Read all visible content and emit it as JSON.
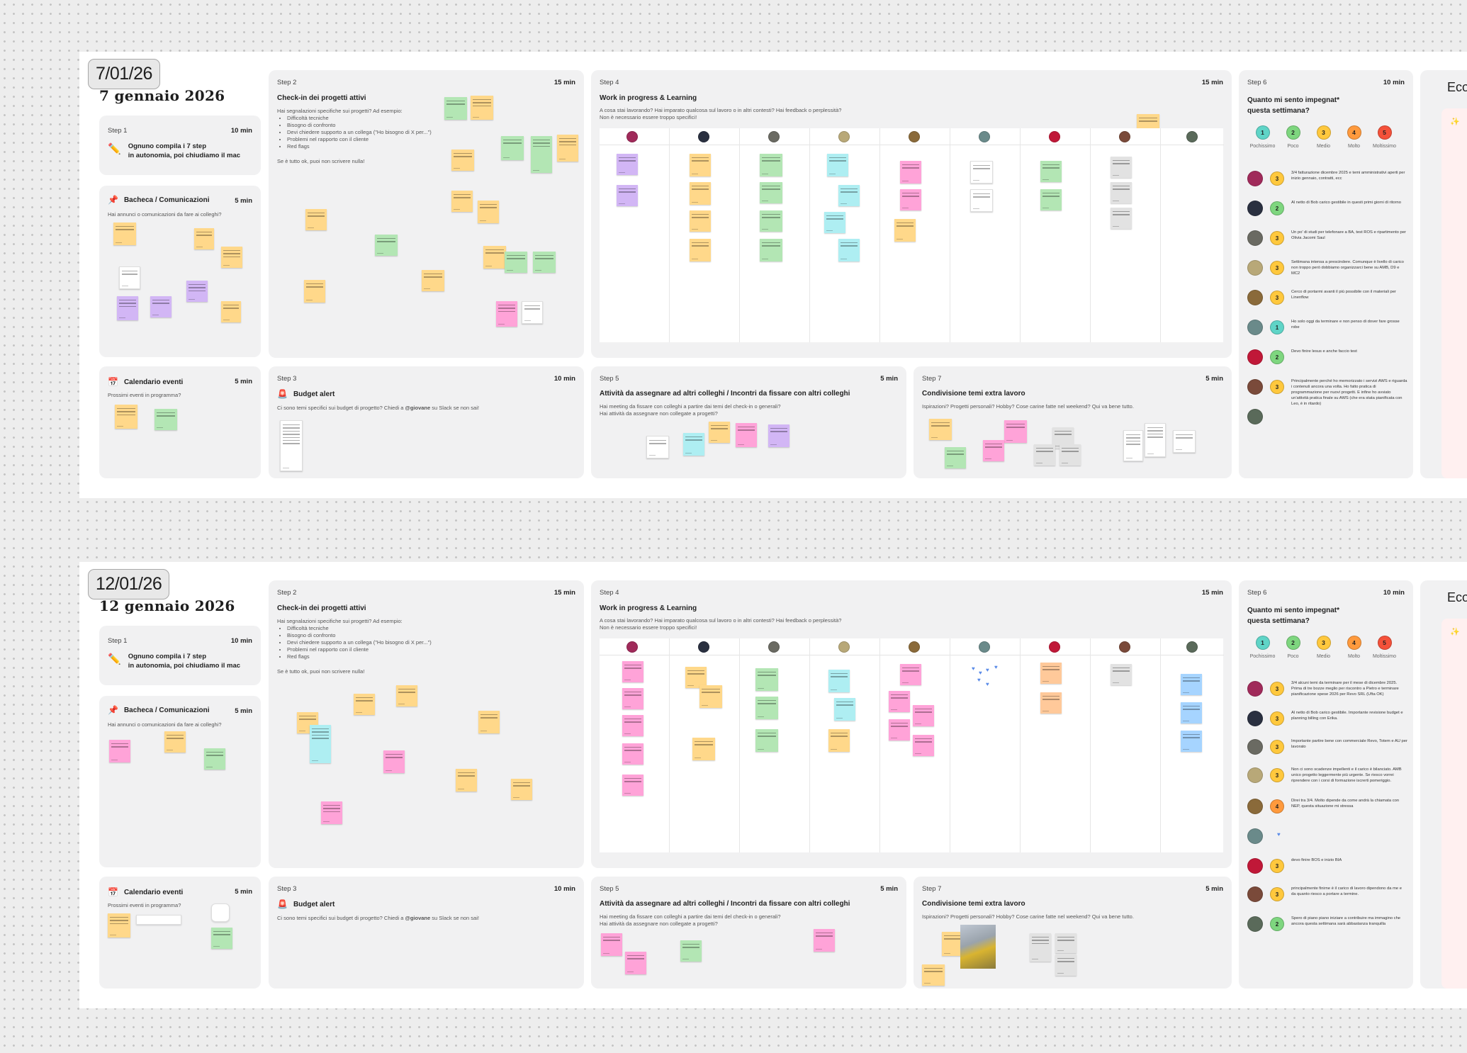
{
  "boards": [
    {
      "date_badge": "7/01/26",
      "date_long": "7 gennaio 2026",
      "step1": {
        "step": "Step 1",
        "minutes": "10 min",
        "icon": "pencil-icon",
        "text_line1": "Ognuno compila i 7 step",
        "text_line2": "in autonomia, poi chiudiamo il mac"
      },
      "bacheca": {
        "title": "Bacheca / Comunicazioni",
        "minutes": "5 min",
        "icon": "pushpin-icon",
        "question": "Hai annunci o comunicazioni da fare ai colleghi?"
      },
      "calendario": {
        "title": "Calendario eventi",
        "minutes": "5 min",
        "icon": "calendar-icon",
        "question": "Prossimi eventi in programma?"
      },
      "step2": {
        "step": "Step 2",
        "minutes": "15 min",
        "title": "Check-in dei progetti attivi",
        "question": "Hai segnalazioni specifiche sui progetti? Ad esempio:",
        "bullets": [
          "Difficoltà tecniche",
          "Bisogno di confronto",
          "Devi chiedere supporto a un collega (\"Ho bisogno di X per...\")",
          "Problemi nel rapporto con il cliente",
          "Red flags"
        ],
        "footer": "Se è tutto ok, puoi non scrivere nulla!"
      },
      "step3": {
        "step": "Step 3",
        "minutes": "10 min",
        "title": "Budget alert",
        "icon": "siren-icon",
        "question_pre": "Ci sono temi specifici sui budget di progetto? Chiedi a ",
        "mention": "@giovane",
        "question_post": " su Slack se non sai!"
      },
      "step4": {
        "step": "Step 4",
        "minutes": "15 min",
        "title": "Work in progress & Learning",
        "line1": "A cosa stai lavorando? Hai imparato qualcosa sul lavoro o in altri contesti? Hai feedback o perplessità?",
        "line2": "Non è necessario essere troppo specifici!"
      },
      "step5": {
        "step": "Step 5",
        "minutes": "5 min",
        "title": "Attività da assegnare ad altri colleghi / Incontri da fissare con altri colleghi",
        "line1": "Hai meeting da fissare con colleghi a partire dai temi del check-in o generali?",
        "line2": "Hai attività da assegnare non collegate a progetti?"
      },
      "step7": {
        "step": "Step 7",
        "minutes": "5 min",
        "title": "Condivisione temi extra lavoro",
        "question": "Ispirazioni? Progetti personali? Hobby? Cose carine fatte nel weekend? Qui va bene tutto."
      },
      "step6": {
        "step": "Step 6",
        "minutes": "10 min",
        "question": "Quanto mi sento impegnat* questa settimana?",
        "scale": [
          {
            "n": "1",
            "label": "Pochissimo",
            "color": "#5fd4c7"
          },
          {
            "n": "2",
            "label": "Poco",
            "color": "#7ed67f"
          },
          {
            "n": "3",
            "label": "Medio",
            "color": "#ffc83d"
          },
          {
            "n": "4",
            "label": "Molto",
            "color": "#ff9a3d"
          },
          {
            "n": "5",
            "label": "Moltissimo",
            "color": "#f4513a"
          }
        ],
        "responses": [
          {
            "rating": "3",
            "color": "#ffc83d",
            "text": "3/4 fatturazione dicembre 2025 e temi amministrativi aperti per inizio gennaio, contratti, ecc"
          },
          {
            "rating": "2",
            "color": "#7ed67f",
            "text": "Al netto di Bob carico gestibile in questi primi giorni di ritorno"
          },
          {
            "rating": "3",
            "color": "#ffc83d",
            "text": "Un po' di studi per telefonare a BA, test ROS e ripartimento per Olivia Jacomi Saul"
          },
          {
            "rating": "3",
            "color": "#ffc83d",
            "text": "Settimana intensa a prescindere. Comunque è livello di carico non troppo però dobbiamo organizzarci bene su AMB, D9 e MC2"
          },
          {
            "rating": "3",
            "color": "#ffc83d",
            "text": "Cerco di portarmi avanti il più possibile con il materiali per Linenflow"
          },
          {
            "rating": "1",
            "color": "#5fd4c7",
            "text": "Ho solo oggi da terminare e non penso di dover fare grosse robe"
          },
          {
            "rating": "2",
            "color": "#7ed67f",
            "text": "Devo finire lesus e anche faccio test"
          },
          {
            "rating": "3",
            "color": "#ffc83d",
            "text": "Principalmente perché ho memorizzato i servizi AWS e riguarda i contenuti ancora una volta. Ho fatto pratica di programmazione per nuovi progetti. E infine ho avviato un'attività pratica finale su AWS (che era stata pianificata con Leo, è in ritardo)"
          },
          {
            "rating": "",
            "color": "",
            "text": ""
          }
        ]
      },
      "econ_title": "Eco"
    },
    {
      "date_badge": "12/01/26",
      "date_long": "12 gennaio 2026",
      "step1": {
        "step": "Step 1",
        "minutes": "10 min",
        "icon": "pencil-icon",
        "text_line1": "Ognuno compila i 7 step",
        "text_line2": "in autonomia, poi chiudiamo il mac"
      },
      "bacheca": {
        "title": "Bacheca / Comunicazioni",
        "minutes": "5 min",
        "icon": "pushpin-icon",
        "question": "Hai annunci o comunicazioni da fare ai colleghi?"
      },
      "calendario": {
        "title": "Calendario eventi",
        "minutes": "5 min",
        "icon": "calendar-icon",
        "question": "Prossimi eventi in programma?"
      },
      "step2": {
        "step": "Step 2",
        "minutes": "15 min",
        "title": "Check-in dei progetti attivi",
        "question": "Hai segnalazioni specifiche sui progetti? Ad esempio:",
        "bullets": [
          "Difficoltà tecniche",
          "Bisogno di confronto",
          "Devi chiedere supporto a un collega (\"Ho bisogno di X per...\")",
          "Problemi nel rapporto con il cliente",
          "Red flags"
        ],
        "footer": "Se è tutto ok, puoi non scrivere nulla!"
      },
      "step3": {
        "step": "Step 3",
        "minutes": "10 min",
        "title": "Budget alert",
        "icon": "siren-icon",
        "question_pre": "Ci sono temi specifici sui budget di progetto? Chiedi a ",
        "mention": "@giovane",
        "question_post": " su Slack se non sai!"
      },
      "step4": {
        "step": "Step 4",
        "minutes": "15 min",
        "title": "Work in progress & Learning",
        "line1": "A cosa stai lavorando? Hai imparato qualcosa sul lavoro o in altri contesti? Hai feedback o perplessità?",
        "line2": "Non è necessario essere troppo specifici!"
      },
      "step5": {
        "step": "Step 5",
        "minutes": "5 min",
        "title": "Attività da assegnare ad altri colleghi / Incontri da fissare con altri colleghi",
        "line1": "Hai meeting da fissare con colleghi a partire dai temi del check-in o generali?",
        "line2": "Hai attività da assegnare non collegate a progetti?"
      },
      "step7": {
        "step": "Step 7",
        "minutes": "5 min",
        "title": "Condivisione temi extra lavoro",
        "question": "Ispirazioni? Progetti personali? Hobby? Cose carine fatte nel weekend? Qui va bene tutto."
      },
      "step6": {
        "step": "Step 6",
        "minutes": "10 min",
        "question": "Quanto mi sento impegnat* questa settimana?",
        "scale": [
          {
            "n": "1",
            "label": "Pochissimo",
            "color": "#5fd4c7"
          },
          {
            "n": "2",
            "label": "Poco",
            "color": "#7ed67f"
          },
          {
            "n": "3",
            "label": "Medio",
            "color": "#ffc83d"
          },
          {
            "n": "4",
            "label": "Molto",
            "color": "#ff9a3d"
          },
          {
            "n": "5",
            "label": "Moltissimo",
            "color": "#f4513a"
          }
        ],
        "responses": [
          {
            "rating": "3",
            "color": "#ffc83d",
            "text": "3/4 alcuni temi da terminare per il mese di dicembre 2025. Prima di tre bozze meglio per riscontro a Pietro e terminare pianificazione spese 2026 per Revo SRL (Ufta OK)"
          },
          {
            "rating": "3",
            "color": "#ffc83d",
            "text": "Al netto di Bob carico gestibile. Importante revisione budget e planning billing con Erika."
          },
          {
            "rating": "3",
            "color": "#ffc83d",
            "text": "Importante partire bene con commerciale Revo, Totem e AU per lavorato"
          },
          {
            "rating": "3",
            "color": "#ffc83d",
            "text": "Non ci sono scadenze impellenti e il carico è bilanciato. AMB unico progetto leggermente più urgente. Se riesco vorrei riprendere con i corsi di formazione iscrerti pomeriggio."
          },
          {
            "rating": "4",
            "color": "#ff9a3d",
            "text": "Direi tra 3/4. Molto dipende da come andrà la chiamata con NEP, questa situazione mi stressa"
          },
          {
            "rating": "",
            "color": "",
            "text": ""
          },
          {
            "rating": "3",
            "color": "#ffc83d",
            "text": "devo finire BOS e inizio BIA"
          },
          {
            "rating": "3",
            "color": "#ffc83d",
            "text": "principalmente finirne è il carico di lavoro dipendono da me e da quanto riesco a portare a termine."
          },
          {
            "rating": "2",
            "color": "#7ed67f",
            "text": "Spero di piano piano iniziare a contribuire ma immagino che ancora questa settimana sarà abbastanza tranquilla"
          }
        ]
      },
      "econ_title": "Eco"
    }
  ]
}
